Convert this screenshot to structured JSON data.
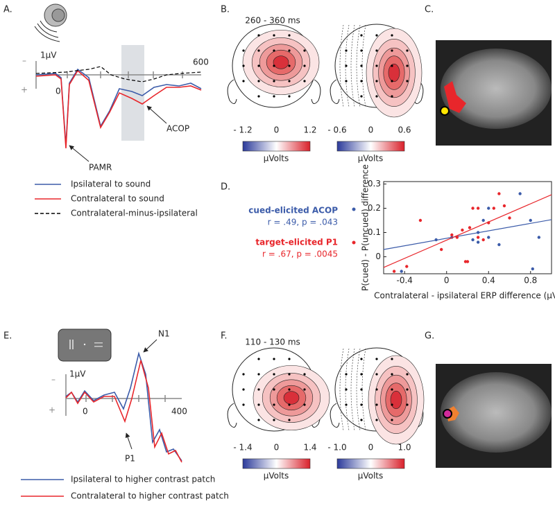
{
  "panels": {
    "a": {
      "label": "A.",
      "minus_sign": "–",
      "plus_sign": "+",
      "scale": "1μV",
      "x_start": "0",
      "x_end": "600",
      "arrow_1": "PAMR",
      "arrow_2": "ACOP",
      "legend": [
        {
          "text": "Ipsilateral to sound",
          "color": "#3b5ba9"
        },
        {
          "text": "Contralateral to sound",
          "color": "#e8262b"
        },
        {
          "text": "Contralateral-minus-ipsilateral",
          "color": "#000000"
        }
      ]
    },
    "b": {
      "label": "B.",
      "window": "260 - 360 ms",
      "colorbars": [
        {
          "ticks": [
            "- 1.2",
            "0",
            "1.2"
          ],
          "unit": "μVolts"
        },
        {
          "ticks": [
            "- 0.6",
            "0",
            "0.6"
          ],
          "unit": "μVolts"
        }
      ]
    },
    "c": {
      "label": "C."
    },
    "d": {
      "label": "D.",
      "stats": [
        "r = .49, p = .043",
        "r = .67, p = .0045"
      ],
      "chart": {
        "type": "scatter",
        "x_label": "Contralateral - ipsilateral ERP difference (μV)",
        "y_label": "P(cued) - P(uncued) difference",
        "xlim": [
          -0.6,
          1.0
        ],
        "ylim": [
          -0.07,
          0.31
        ],
        "xticks": [
          -0.4,
          0,
          0.4,
          0.8
        ],
        "yticks": [
          0,
          0.1,
          0.2,
          0.3
        ],
        "series": [
          {
            "name": "cued-elicited ACOP",
            "color": "#3b5ba9",
            "x": [
              -0.43,
              -0.1,
              0.05,
              0.25,
              0.3,
              0.35,
              0.4,
              0.4,
              0.5,
              0.7,
              0.8,
              0.82,
              0.88,
              0.3
            ],
            "y": [
              -0.06,
              0.07,
              0.08,
              0.07,
              0.06,
              0.15,
              0.2,
              0.08,
              0.05,
              0.26,
              0.15,
              -0.05,
              0.08,
              0.1
            ],
            "fit": [
              0.03,
              0.153
            ]
          },
          {
            "name": "target-elicited P1",
            "color": "#e8262b",
            "x": [
              -0.5,
              -0.38,
              -0.25,
              -0.05,
              0.05,
              0.1,
              0.15,
              0.18,
              0.2,
              0.25,
              0.3,
              0.3,
              0.35,
              0.4,
              0.45,
              0.5,
              0.55,
              0.6,
              0.22
            ],
            "y": [
              -0.06,
              -0.04,
              0.15,
              0.03,
              0.09,
              0.08,
              0.11,
              -0.02,
              -0.02,
              0.2,
              0.2,
              0.08,
              0.07,
              0.14,
              0.2,
              0.26,
              0.21,
              0.16,
              0.12
            ],
            "fit": [
              -0.044,
              0.256
            ]
          }
        ]
      }
    },
    "e": {
      "label": "E.",
      "minus_sign": "–",
      "plus_sign": "+",
      "scale": "1μV",
      "x_start": "0",
      "x_end": "400",
      "arrow_1": "N1",
      "arrow_2": "P1",
      "legend": [
        {
          "text": "Ipsilateral to higher contrast patch",
          "color": "#3b5ba9"
        },
        {
          "text": "Contralateral to higher contrast patch",
          "color": "#e8262b"
        }
      ]
    },
    "f": {
      "label": "F.",
      "window": "110 - 130 ms",
      "colorbars": [
        {
          "ticks": [
            "- 1.4",
            "0",
            "1.4"
          ],
          "unit": "μVolts"
        },
        {
          "ticks": [
            "- 1.0",
            "0",
            "1.0"
          ],
          "unit": "μVolts"
        }
      ]
    },
    "g": {
      "label": "G."
    }
  }
}
